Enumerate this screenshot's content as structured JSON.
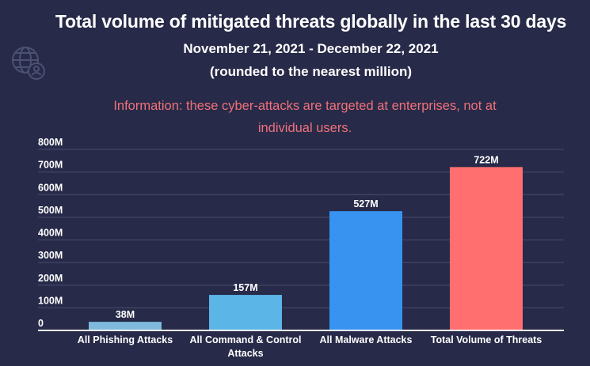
{
  "header": {
    "title": "Total volume of mitigated threats globally in the last 30 days",
    "date_range": "November 21, 2021 - December 22, 2021",
    "note": "(rounded to the nearest million)",
    "info": "Information: these cyber-attacks are targeted at enterprises, not at individual users.",
    "logo_icon": "globe-user-icon"
  },
  "colors": {
    "background": "#272a48",
    "info_text": "#f0717a",
    "gridline": "#3f4260",
    "baseline": "#ffffff",
    "logo": "#7a7fa8"
  },
  "chart_data": {
    "type": "bar",
    "title": "Total volume of mitigated threats globally in the last 30 days",
    "subtitle": "November 21, 2021 - December 22, 2021 (rounded to the nearest million)",
    "xlabel": "",
    "ylabel": "",
    "categories": [
      [
        "All Phishing Attacks"
      ],
      [
        "All Command & Control",
        "Attacks"
      ],
      [
        "All Malware Attacks"
      ],
      [
        "Total Volume of Threats"
      ]
    ],
    "values": [
      38,
      157,
      527,
      722
    ],
    "value_labels": [
      "38M",
      "157M",
      "527M",
      "722M"
    ],
    "bar_colors": [
      "#7fb9de",
      "#5bb5e6",
      "#3893f0",
      "#ff6f6f"
    ],
    "ylim": [
      0,
      800
    ],
    "yticks": [
      0,
      100,
      200,
      300,
      400,
      500,
      600,
      700,
      800
    ],
    "ytick_labels": [
      "0",
      "100M",
      "200M",
      "300M",
      "400M",
      "500M",
      "600M",
      "700M",
      "800M"
    ],
    "grid": true,
    "legend": "none",
    "unit": "million"
  }
}
